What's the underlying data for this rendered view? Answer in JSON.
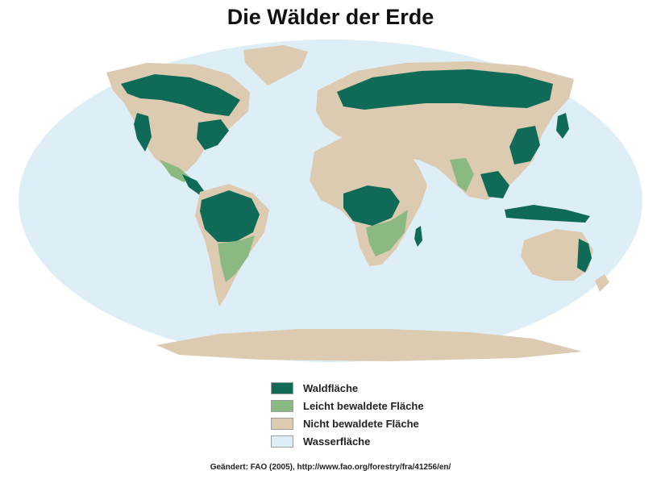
{
  "title": "Die Wälder der Erde",
  "colors": {
    "forest": "#0f6b58",
    "light_forest": "#8bb982",
    "non_forest": "#dccbb1",
    "water": "#ddeef7",
    "ocean_outline": "#dbe9f2"
  },
  "legend": [
    {
      "label": "Waldfläche",
      "color": "#0f6b58"
    },
    {
      "label": "Leicht bewaldete Fläche",
      "color": "#8bb982"
    },
    {
      "label": "Nicht bewaldete Fläche",
      "color": "#dccbb1"
    },
    {
      "label": "Wasserfläche",
      "color": "#ddeef7"
    }
  ],
  "source": "Geändert: FAO (2005), http://www.fao.org/forestry/fra/41256/en/"
}
